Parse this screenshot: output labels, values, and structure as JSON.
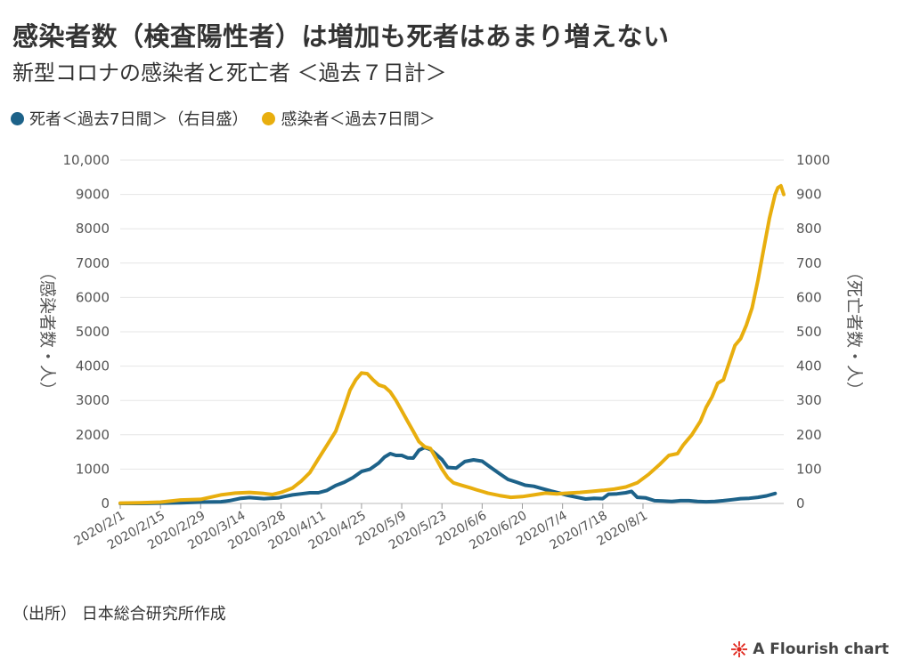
{
  "title": "感染者数（検査陽性者）は増加も死者はあまり増えない",
  "subtitle": "新型コロナの感染者と死亡者 ＜過去７日計＞",
  "source": "（出所） 日本総合研究所作成",
  "credit": "A Flourish chart",
  "colors": {
    "deaths": "#1d6289",
    "infected": "#e8ae0e",
    "grid": "#e6e6e6",
    "text": "#555555",
    "credit_icon": "#e0261c"
  },
  "chart_data": {
    "type": "line",
    "legend_position": "top-left",
    "grid": true,
    "x_ticks": [
      "2020/2/1",
      "2020/2/15",
      "2020/2/29",
      "2020/3/14",
      "2020/3/28",
      "2020/4/11",
      "2020/4/25",
      "2020/5/9",
      "2020/5/23",
      "2020/6/6",
      "2020/6/20",
      "2020/7/4",
      "2020/7/18",
      "2020/8/1"
    ],
    "y_left": {
      "label": "（感染者数・人）",
      "ylim": [
        0,
        10000
      ],
      "ticks": [
        "0",
        "1000",
        "2000",
        "3000",
        "4000",
        "5000",
        "6000",
        "7000",
        "8000",
        "9000",
        "10,000"
      ]
    },
    "y_right": {
      "label": "（死亡者数・人）",
      "ylim": [
        0,
        1000
      ],
      "ticks": [
        "0",
        "100",
        "200",
        "300",
        "400",
        "500",
        "600",
        "700",
        "800",
        "900",
        "1000"
      ]
    },
    "series": [
      {
        "name": "死者＜過去7日間＞（右目盛）",
        "axis": "right",
        "points": [
          [
            0,
            0
          ],
          [
            7,
            0
          ],
          [
            14,
            1
          ],
          [
            21,
            2
          ],
          [
            28,
            4
          ],
          [
            35,
            5
          ],
          [
            38,
            8
          ],
          [
            42,
            15
          ],
          [
            45,
            17
          ],
          [
            50,
            14
          ],
          [
            52,
            15
          ],
          [
            55,
            16
          ],
          [
            57,
            20
          ],
          [
            60,
            25
          ],
          [
            63,
            28
          ],
          [
            66,
            31
          ],
          [
            69,
            31
          ],
          [
            72,
            38
          ],
          [
            75,
            52
          ],
          [
            78,
            62
          ],
          [
            81,
            75
          ],
          [
            84,
            93
          ],
          [
            87,
            100
          ],
          [
            90,
            118
          ],
          [
            92,
            135
          ],
          [
            94,
            145
          ],
          [
            96,
            140
          ],
          [
            98,
            140
          ],
          [
            100,
            133
          ],
          [
            102,
            132
          ],
          [
            104,
            155
          ],
          [
            106,
            163
          ],
          [
            108,
            157
          ],
          [
            110,
            143
          ],
          [
            112,
            128
          ],
          [
            114,
            105
          ],
          [
            117,
            103
          ],
          [
            120,
            122
          ],
          [
            123,
            127
          ],
          [
            126,
            123
          ],
          [
            129,
            105
          ],
          [
            132,
            87
          ],
          [
            135,
            70
          ],
          [
            138,
            62
          ],
          [
            141,
            53
          ],
          [
            144,
            50
          ],
          [
            147,
            43
          ],
          [
            150,
            36
          ],
          [
            153,
            30
          ],
          [
            156,
            23
          ],
          [
            159,
            18
          ],
          [
            162,
            13
          ],
          [
            165,
            15
          ],
          [
            168,
            14
          ],
          [
            170,
            27
          ],
          [
            173,
            28
          ],
          [
            176,
            31
          ],
          [
            178,
            35
          ],
          [
            180,
            18
          ],
          [
            183,
            16
          ],
          [
            186,
            8
          ],
          [
            189,
            7
          ],
          [
            192,
            6
          ],
          [
            195,
            8
          ],
          [
            198,
            8
          ],
          [
            201,
            6
          ],
          [
            204,
            5
          ],
          [
            207,
            6
          ],
          [
            210,
            8
          ],
          [
            213,
            11
          ],
          [
            216,
            14
          ],
          [
            219,
            15
          ],
          [
            222,
            18
          ],
          [
            225,
            22
          ],
          [
            228,
            29
          ]
        ]
      },
      {
        "name": "感染者＜過去7日間＞",
        "axis": "left",
        "points": [
          [
            0,
            10
          ],
          [
            7,
            20
          ],
          [
            14,
            40
          ],
          [
            21,
            100
          ],
          [
            28,
            120
          ],
          [
            35,
            250
          ],
          [
            40,
            300
          ],
          [
            45,
            320
          ],
          [
            50,
            290
          ],
          [
            53,
            260
          ],
          [
            56,
            320
          ],
          [
            60,
            450
          ],
          [
            63,
            650
          ],
          [
            66,
            900
          ],
          [
            69,
            1300
          ],
          [
            72,
            1700
          ],
          [
            75,
            2100
          ],
          [
            78,
            2800
          ],
          [
            80,
            3300
          ],
          [
            82,
            3600
          ],
          [
            84,
            3800
          ],
          [
            86,
            3780
          ],
          [
            88,
            3600
          ],
          [
            90,
            3450
          ],
          [
            92,
            3400
          ],
          [
            94,
            3250
          ],
          [
            96,
            3000
          ],
          [
            98,
            2700
          ],
          [
            100,
            2400
          ],
          [
            102,
            2100
          ],
          [
            104,
            1800
          ],
          [
            106,
            1650
          ],
          [
            108,
            1600
          ],
          [
            110,
            1300
          ],
          [
            112,
            1000
          ],
          [
            114,
            750
          ],
          [
            116,
            600
          ],
          [
            118,
            550
          ],
          [
            120,
            500
          ],
          [
            122,
            450
          ],
          [
            124,
            400
          ],
          [
            126,
            350
          ],
          [
            128,
            300
          ],
          [
            132,
            230
          ],
          [
            136,
            180
          ],
          [
            140,
            200
          ],
          [
            144,
            250
          ],
          [
            148,
            300
          ],
          [
            152,
            280
          ],
          [
            156,
            300
          ],
          [
            160,
            320
          ],
          [
            164,
            350
          ],
          [
            168,
            380
          ],
          [
            172,
            420
          ],
          [
            176,
            480
          ],
          [
            180,
            600
          ],
          [
            184,
            850
          ],
          [
            188,
            1150
          ],
          [
            191,
            1400
          ],
          [
            194,
            1450
          ],
          [
            196,
            1700
          ],
          [
            199,
            2000
          ],
          [
            202,
            2400
          ],
          [
            204,
            2800
          ],
          [
            206,
            3100
          ],
          [
            208,
            3500
          ],
          [
            210,
            3600
          ],
          [
            212,
            4100
          ],
          [
            214,
            4600
          ],
          [
            216,
            4800
          ],
          [
            218,
            5200
          ],
          [
            220,
            5700
          ],
          [
            222,
            6500
          ],
          [
            224,
            7400
          ],
          [
            226,
            8300
          ],
          [
            228,
            9000
          ],
          [
            229,
            9200
          ],
          [
            230,
            9250
          ],
          [
            231,
            9000
          ]
        ]
      }
    ]
  }
}
